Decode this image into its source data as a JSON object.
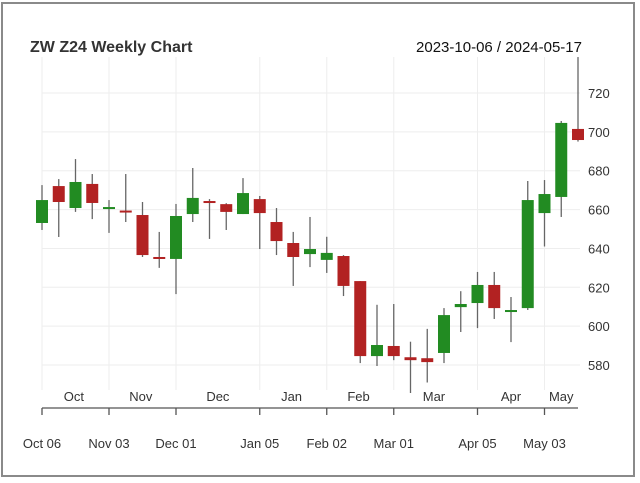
{
  "chart_data": {
    "type": "candlestick",
    "title": "ZW Z24 Weekly Chart",
    "date_range": "2023-10-06 / 2024-05-17",
    "ylim": [
      560,
      740
    ],
    "yticks": [
      "580",
      "600",
      "620",
      "640",
      "660",
      "680",
      "700",
      "720"
    ],
    "month_labels": [
      {
        "label": "Oct",
        "pos": 1.9
      },
      {
        "label": "Nov",
        "pos": 5.9
      },
      {
        "label": "Dec",
        "pos": 10.5
      },
      {
        "label": "Jan",
        "pos": 14.9
      },
      {
        "label": "Feb",
        "pos": 18.9
      },
      {
        "label": "Mar",
        "pos": 23.4
      },
      {
        "label": "Apr",
        "pos": 28.0
      },
      {
        "label": "May",
        "pos": 31.0
      }
    ],
    "date_ticks": [
      {
        "label": "Oct 06",
        "index": 0
      },
      {
        "label": "Nov 03",
        "index": 4
      },
      {
        "label": "Dec 01",
        "index": 8
      },
      {
        "label": "Jan 05",
        "index": 13
      },
      {
        "label": "Feb 02",
        "index": 17
      },
      {
        "label": "Mar 01",
        "index": 21
      },
      {
        "label": "Apr 05",
        "index": 26
      },
      {
        "label": "May 03",
        "index": 30
      }
    ],
    "up_color": "#228b22",
    "down_color": "#b22222",
    "ohlc": [
      [
        653.1,
        672.6,
        649.5,
        664.9
      ],
      [
        672.1,
        675.7,
        645.9,
        663.9
      ],
      [
        660.8,
        686.0,
        658.8,
        674.2
      ],
      [
        673.2,
        678.3,
        655.1,
        663.4
      ],
      [
        660.6,
        664.9,
        648.0,
        661.3
      ],
      [
        659.5,
        678.3,
        653.6,
        658.5
      ],
      [
        657.2,
        663.9,
        635.6,
        636.6
      ],
      [
        635.6,
        648.5,
        630.0,
        634.6
      ],
      [
        634.6,
        662.9,
        616.5,
        656.7
      ],
      [
        657.7,
        681.4,
        653.6,
        666.0
      ],
      [
        664.4,
        665.4,
        644.9,
        663.4
      ],
      [
        662.8,
        663.3,
        649.5,
        658.8
      ],
      [
        657.7,
        676.2,
        657.7,
        668.5
      ],
      [
        665.4,
        667.0,
        639.7,
        658.2
      ],
      [
        653.6,
        660.8,
        636.6,
        643.8
      ],
      [
        642.8,
        648.5,
        620.7,
        635.6
      ],
      [
        637.1,
        656.2,
        630.4,
        639.7
      ],
      [
        634.1,
        646.0,
        627.4,
        637.7
      ],
      [
        636.1,
        636.6,
        615.5,
        620.7
      ],
      [
        623.2,
        623.2,
        581.0,
        584.6
      ],
      [
        584.6,
        611.0,
        579.5,
        590.3
      ],
      [
        589.8,
        611.4,
        582.5,
        584.6
      ],
      [
        584.0,
        592.0,
        565.6,
        582.5
      ],
      [
        583.5,
        598.6,
        571.0,
        581.5
      ],
      [
        586.2,
        609.3,
        581.0,
        605.7
      ],
      [
        609.8,
        618.0,
        597.0,
        611.4
      ],
      [
        611.9,
        627.9,
        599.0,
        621.2
      ],
      [
        621.2,
        627.9,
        603.7,
        609.3
      ],
      [
        607.7,
        615.0,
        591.8,
        608.3
      ],
      [
        609.3,
        674.7,
        608.3,
        664.9
      ],
      [
        658.2,
        675.2,
        641.0,
        668.0
      ],
      [
        666.5,
        705.6,
        656.2,
        704.6
      ],
      [
        701.5,
        738.5,
        695.0,
        695.8
      ]
    ]
  }
}
